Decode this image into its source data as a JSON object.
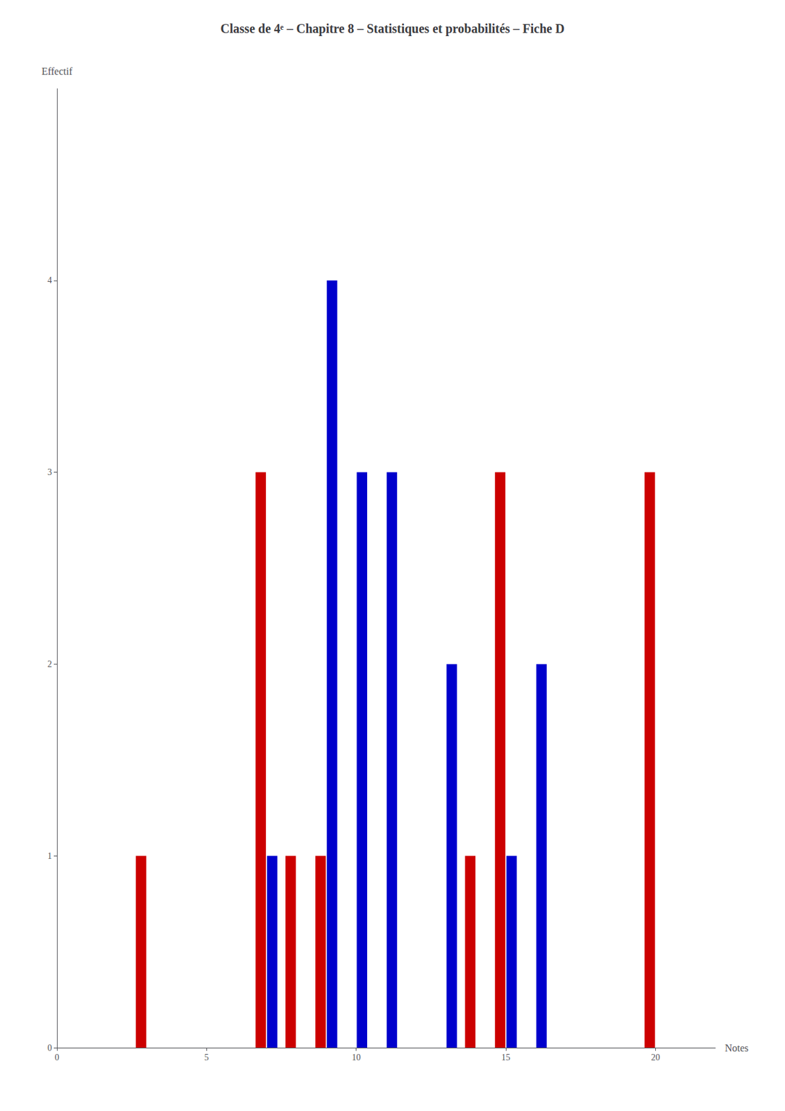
{
  "chart_data": {
    "type": "bar",
    "title": "Classe de 4ᵉ – Chapitre 8 – Statistiques et probabilités – Fiche D",
    "xlabel": "Notes",
    "ylabel": "Effectif",
    "series": [
      {
        "color": "#CC0000",
        "x": [
          3,
          7,
          8,
          9,
          14,
          15,
          20
        ],
        "values": [
          1,
          3,
          1,
          1,
          1,
          3,
          3
        ]
      },
      {
        "color": "#0000CC",
        "x": [
          7,
          9,
          10,
          11,
          13,
          15,
          16
        ],
        "values": [
          1,
          4,
          3,
          3,
          2,
          1,
          2
        ]
      }
    ],
    "xlim": [
      0,
      22
    ],
    "xticks": [
      0,
      5,
      10,
      15,
      20
    ],
    "ylim": [
      0,
      5
    ],
    "yticks": [
      0,
      1,
      2,
      3,
      4
    ],
    "grid": false
  }
}
